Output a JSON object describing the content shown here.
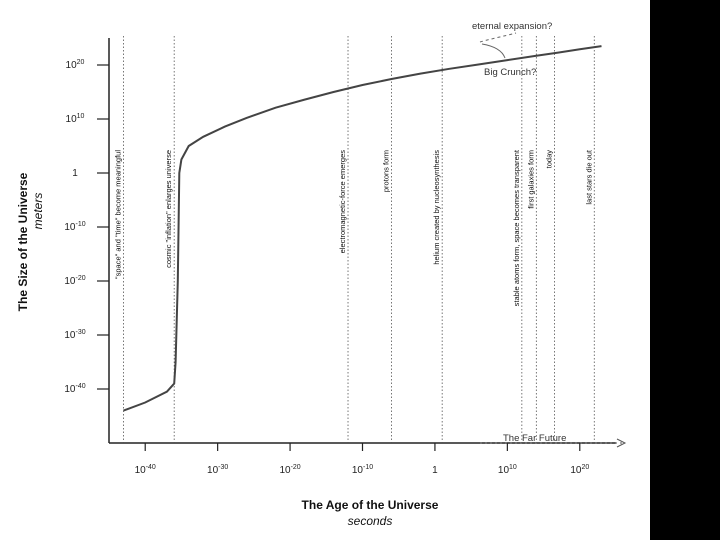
{
  "chart_data": {
    "type": "line",
    "title": "",
    "xlabel": "The Age of the Universe",
    "xunit": "seconds",
    "ylabel": "The Size of the Universe",
    "yunit": "meters",
    "x_scale": "log",
    "y_scale": "log",
    "x_ticks": [
      {
        "exp": -40,
        "label": "10",
        "sup": "-40"
      },
      {
        "exp": -30,
        "label": "10",
        "sup": "-30"
      },
      {
        "exp": -20,
        "label": "10",
        "sup": "-20"
      },
      {
        "exp": -10,
        "label": "10",
        "sup": "-10"
      },
      {
        "exp": 0,
        "label": "1",
        "sup": ""
      },
      {
        "exp": 10,
        "label": "10",
        "sup": "10"
      },
      {
        "exp": 20,
        "label": "10",
        "sup": "20"
      }
    ],
    "y_ticks": [
      {
        "exp": 20,
        "label": "10",
        "sup": "20"
      },
      {
        "exp": 10,
        "label": "10",
        "sup": "10"
      },
      {
        "exp": 0,
        "label": "1",
        "sup": ""
      },
      {
        "exp": -10,
        "label": "10",
        "sup": "-10"
      },
      {
        "exp": -20,
        "label": "10",
        "sup": "-20"
      },
      {
        "exp": -30,
        "label": "10",
        "sup": "-30"
      },
      {
        "exp": -40,
        "label": "10",
        "sup": "-40"
      }
    ],
    "xlim_exp": [
      -45,
      25
    ],
    "ylim_exp": [
      -50,
      25
    ],
    "series": [
      {
        "x_exp": [
          -43,
          -40,
          -37,
          -36,
          -35.8,
          -35.5,
          -35.3,
          -35,
          -34,
          -32,
          -29,
          -26,
          -22,
          -18,
          -14,
          -10,
          -6,
          -2,
          2,
          6,
          10,
          14,
          17,
          20,
          23
        ],
        "y_exp": [
          -44,
          -42.5,
          -40.5,
          -39,
          -35,
          -20,
          0,
          2.5,
          5,
          6.7,
          8.6,
          10.2,
          12.1,
          13.6,
          15,
          16.3,
          17.4,
          18.4,
          19.3,
          20.1,
          20.9,
          21.7,
          22.3,
          22.9,
          23.5
        ]
      }
    ],
    "events": [
      {
        "x_exp": -43,
        "label": "\"space\" and \"time\" become meaningful"
      },
      {
        "x_exp": -36,
        "label": "cosmic \"inflation\" enlarges universe"
      },
      {
        "x_exp": -12,
        "label": "electromagnetic-force emerges"
      },
      {
        "x_exp": -6,
        "label": "protons form"
      },
      {
        "x_exp": 1,
        "label": "helium created by nucleosynthesis"
      },
      {
        "x_exp": 12,
        "label": "stable atoms form, space becomes transparent"
      },
      {
        "x_exp": 14,
        "label": "first galaxies form"
      },
      {
        "x_exp": 16.5,
        "label": "today"
      },
      {
        "x_exp": 22,
        "label": "last stars die out"
      }
    ],
    "annotations": {
      "eternal_expansion": "eternal expansion?",
      "big_crunch": "Big Crunch?",
      "far_future": "The Far Future"
    },
    "grid": false,
    "legend": "none"
  }
}
